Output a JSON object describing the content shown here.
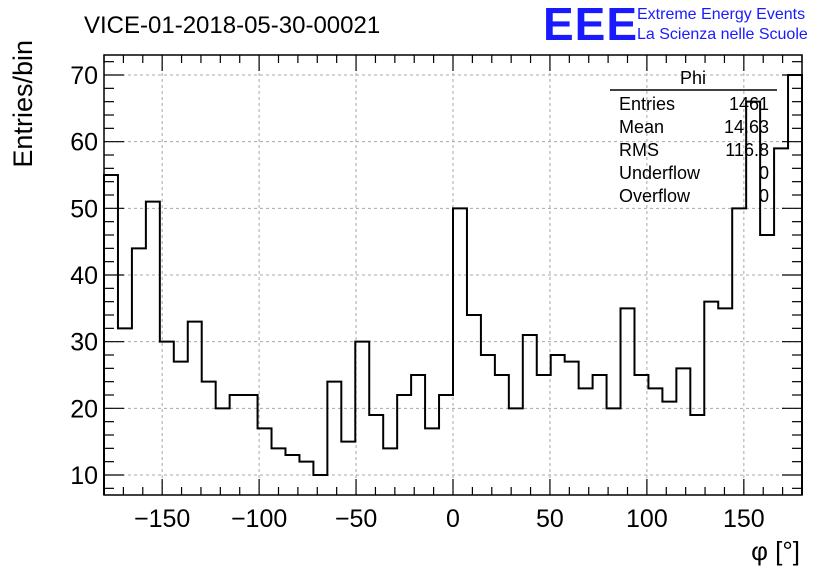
{
  "chart_data": {
    "type": "bar",
    "title": "VICE-01-2018-05-30-00021",
    "xlabel": "φ [°]",
    "ylabel": "Entries/bin",
    "xlim": [
      -180,
      180
    ],
    "ylim": [
      7,
      73
    ],
    "xticks": [
      -150,
      -100,
      -50,
      0,
      50,
      100,
      150
    ],
    "yticks": [
      10,
      20,
      30,
      40,
      50,
      60,
      70
    ],
    "grid": true,
    "bin_width": 7.2,
    "bin_low_edges": [
      -180,
      -172.8,
      -165.6,
      -158.4,
      -151.2,
      -144,
      -136.8,
      -129.6,
      -122.4,
      -115.2,
      -108,
      -100.8,
      -93.6,
      -86.4,
      -79.2,
      -72,
      -64.8,
      -57.6,
      -50.4,
      -43.2,
      -36,
      -28.8,
      -21.6,
      -14.4,
      -7.2,
      0,
      7.2,
      14.4,
      21.6,
      28.8,
      36,
      43.2,
      50.4,
      57.6,
      64.8,
      72,
      79.2,
      86.4,
      93.6,
      100.8,
      108,
      115.2,
      122.4,
      129.6,
      136.8,
      144,
      151.2,
      158.4,
      165.6,
      172.8
    ],
    "values": [
      55,
      32,
      44,
      51,
      30,
      27,
      33,
      24,
      20,
      22,
      22,
      17,
      14,
      13,
      12,
      10,
      24,
      15,
      30,
      19,
      14,
      22,
      25,
      17,
      22,
      50,
      34,
      28,
      25,
      20,
      31,
      25,
      28,
      27,
      23,
      25,
      20,
      35,
      25,
      23,
      21,
      26,
      19,
      36,
      35,
      50,
      66,
      46,
      59,
      70
    ]
  },
  "stats": {
    "name": "Phi",
    "rows": [
      {
        "label": "Entries",
        "value": "1461"
      },
      {
        "label": "Mean",
        "value": "14.63"
      },
      {
        "label": "RMS",
        "value": "116.8"
      },
      {
        "label": "Underflow",
        "value": "0"
      },
      {
        "label": "Overflow",
        "value": "0"
      }
    ]
  },
  "logo": {
    "mark": "EEE",
    "line1": "Extreme Energy Events",
    "line2": "La Scienza nelle Scuole",
    "color": "#1a1aff"
  }
}
